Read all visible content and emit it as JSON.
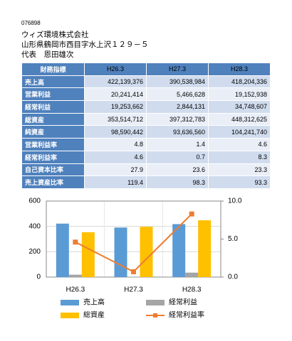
{
  "header": {
    "code": "076898",
    "company": "ウィズ環境株式会社",
    "address": "山形県鶴岡市西目字水上沢１２９－５",
    "representative": "代表　恩田雄次"
  },
  "table": {
    "columns": [
      "財務指標",
      "H26.3",
      "H27.3",
      "H28.3"
    ],
    "rows": [
      [
        "売上高",
        "422,139,376",
        "390,538,984",
        "418,204,336"
      ],
      [
        "営業利益",
        "20,241,414",
        "5,466,628",
        "19,152,938"
      ],
      [
        "経常利益",
        "19,253,662",
        "2,844,131",
        "34,748,607"
      ],
      [
        "総資産",
        "353,514,712",
        "397,312,783",
        "448,312,625"
      ],
      [
        "純資産",
        "98,590,442",
        "93,636,560",
        "104,241,740"
      ],
      [
        "営業利益率",
        "4.8",
        "1.4",
        "4.6"
      ],
      [
        "経常利益率",
        "4.6",
        "0.7",
        "8.3"
      ],
      [
        "自己資本比率",
        "27.9",
        "23.6",
        "23.3"
      ],
      [
        "売上資産比率",
        "119.4",
        "98.3",
        "93.3"
      ]
    ]
  },
  "chart_data": {
    "type": "bar",
    "categories": [
      "H26.3",
      "H27.3",
      "H28.3"
    ],
    "series": [
      {
        "name": "売上高",
        "color": "#5b9bd5",
        "values": [
          422,
          391,
          418
        ]
      },
      {
        "name": "経常利益",
        "color": "#a5a5a5",
        "values": [
          19,
          3,
          35
        ]
      },
      {
        "name": "総資産",
        "color": "#ffc000",
        "values": [
          354,
          397,
          448
        ]
      },
      {
        "name": "経常利益率",
        "color": "#ed7d31",
        "type": "line",
        "axis": "y2",
        "values": [
          4.6,
          0.7,
          8.3
        ]
      }
    ],
    "ylim": [
      0,
      600
    ],
    "yticks": [
      0,
      200,
      400,
      600
    ],
    "y2lim": [
      0,
      10
    ],
    "y2ticks": [
      {
        "value": 0,
        "label": "0.0"
      },
      {
        "value": 5,
        "label": "5.0"
      },
      {
        "value": 10,
        "label": "10.0"
      }
    ],
    "grid": true
  }
}
